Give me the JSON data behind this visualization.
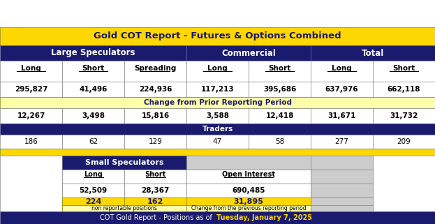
{
  "title": "Gold COT Report - Futures & Options Combined",
  "title_bg": "#FFD700",
  "title_color": "#1a1a6e",
  "header_bg": "#1a1a6e",
  "header_color": "#FFFFFF",
  "yellow_bg": "#FFFFAA",
  "yellow_dark": "#FFD700",
  "white_bg": "#FFFFFF",
  "gray_bg": "#CCCCCC",
  "sections": {
    "large_spec": "Large Speculators",
    "commercial": "Commercial",
    "total": "Total",
    "small_spec": "Small Speculators"
  },
  "col_headers": [
    "Long",
    "Short",
    "Spreading",
    "Long",
    "Short",
    "Long",
    "Short"
  ],
  "main_values": [
    "295,827",
    "41,496",
    "224,936",
    "117,213",
    "395,686",
    "637,976",
    "662,118"
  ],
  "change_label": "Change from Prior Reporting Period",
  "change_values": [
    "12,267",
    "3,498",
    "15,816",
    "3,588",
    "12,418",
    "31,671",
    "31,732"
  ],
  "traders_label": "Traders",
  "traders_values": [
    "186",
    "62",
    "129",
    "47",
    "58",
    "277",
    "209"
  ],
  "small_col_headers": [
    "Long",
    "Short",
    "Open Interest"
  ],
  "small_values": [
    "52,509",
    "28,367",
    "690,485"
  ],
  "small_change": [
    "224",
    "162",
    "31,895"
  ],
  "small_note_left": "non reportable positions",
  "small_note_right": "Change from the previous reporting period",
  "footer_prefix": "COT Gold Report - Positions as of  ",
  "footer_date": "Tuesday, January 7, 2025",
  "footer_bg": "#1a1a6e",
  "footer_color": "#FFFFFF",
  "footer_date_color": "#FFD700"
}
